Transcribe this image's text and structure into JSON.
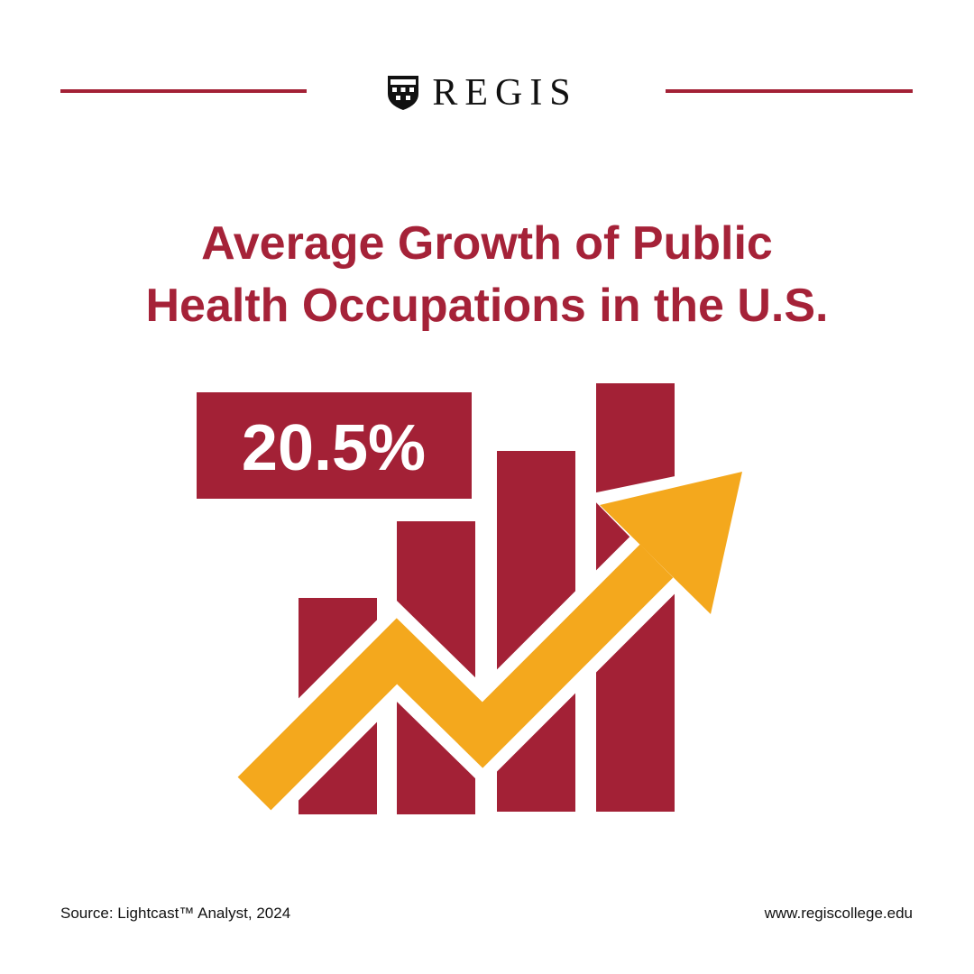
{
  "header": {
    "brand": "REGIS"
  },
  "title_lines": [
    "Average Growth of Public",
    "Health Occupations in the U.S."
  ],
  "stat": "20.5%",
  "footer": {
    "source": "Source: Lightcast™ Analyst, 2024",
    "website": "www.regiscollege.edu"
  }
}
